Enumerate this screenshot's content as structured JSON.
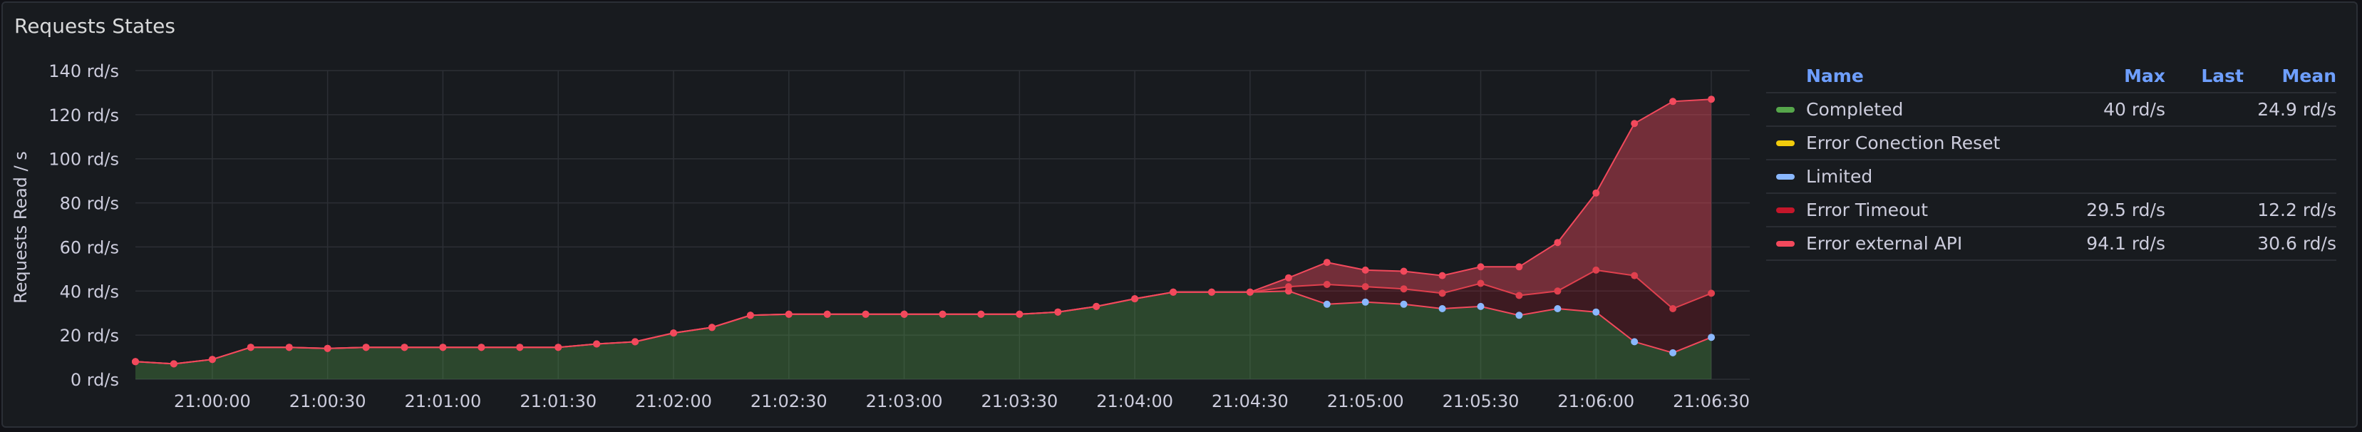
{
  "panel": {
    "title": "Requests States"
  },
  "legend": {
    "headers": {
      "name": "Name",
      "max": "Max",
      "last": "Last",
      "mean": "Mean"
    },
    "items": [
      {
        "name": "Completed",
        "color": "#56a64b",
        "max": "40 rd/s",
        "last": "",
        "mean": "24.9 rd/s"
      },
      {
        "name": "Error Conection Reset",
        "color": "#f2cc0c",
        "max": "",
        "last": "",
        "mean": ""
      },
      {
        "name": "Limited",
        "color": "#8ab8ff",
        "max": "",
        "last": "",
        "mean": ""
      },
      {
        "name": "Error Timeout",
        "color": "#c4162a",
        "max": "29.5 rd/s",
        "last": "",
        "mean": "12.2 rd/s"
      },
      {
        "name": "Error external API",
        "color": "#f2495c",
        "max": "94.1 rd/s",
        "last": "",
        "mean": "30.6 rd/s"
      }
    ]
  },
  "chart_data": {
    "type": "area",
    "stacked": true,
    "title": "Requests States",
    "ylabel": "Requests Read / s",
    "xlabel": "",
    "ylim": [
      0,
      140
    ],
    "y_ticks": [
      "0 rd/s",
      "20 rd/s",
      "40 rd/s",
      "60 rd/s",
      "80 rd/s",
      "100 rd/s",
      "120 rd/s",
      "140 rd/s"
    ],
    "x_ticks": [
      "21:00:00",
      "21:00:30",
      "21:01:00",
      "21:01:30",
      "21:02:00",
      "21:02:30",
      "21:03:00",
      "21:03:30",
      "21:04:00",
      "21:04:30",
      "21:05:00",
      "21:05:30",
      "21:06:00",
      "21:06:30"
    ],
    "x_start": "20:59:40",
    "x_end": "21:06:40",
    "x": [
      "20:59:40",
      "20:59:50",
      "21:00:00",
      "21:00:10",
      "21:00:20",
      "21:00:30",
      "21:00:40",
      "21:00:50",
      "21:01:00",
      "21:01:10",
      "21:01:20",
      "21:01:30",
      "21:01:40",
      "21:01:50",
      "21:02:00",
      "21:02:10",
      "21:02:20",
      "21:02:30",
      "21:02:40",
      "21:02:50",
      "21:03:00",
      "21:03:10",
      "21:03:20",
      "21:03:30",
      "21:03:40",
      "21:03:50",
      "21:04:00",
      "21:04:10",
      "21:04:20",
      "21:04:30",
      "21:04:40",
      "21:04:50",
      "21:05:00",
      "21:05:10",
      "21:05:20",
      "21:05:30",
      "21:05:40",
      "21:05:50",
      "21:06:00",
      "21:06:10",
      "21:06:20",
      "21:06:30"
    ],
    "grid": true,
    "legend_position": "right",
    "series": [
      {
        "name": "Completed",
        "color": "#56a64b",
        "values": [
          8,
          7,
          9,
          14.5,
          14.5,
          14,
          14.5,
          14.5,
          14.5,
          14.5,
          14.5,
          14.5,
          16,
          17,
          21,
          23.5,
          29,
          29.5,
          29.5,
          29.5,
          29.5,
          29.5,
          29.5,
          29.5,
          30.5,
          33,
          36.5,
          39.5,
          39.5,
          39.5,
          40,
          34,
          35,
          34,
          32,
          33,
          29,
          32,
          30.5,
          17,
          12,
          19
        ]
      },
      {
        "name": "Error Conection Reset",
        "color": "#f2cc0c",
        "values": [
          0,
          0,
          0,
          0,
          0,
          0,
          0,
          0,
          0,
          0,
          0,
          0,
          0,
          0,
          0,
          0,
          0,
          0,
          0,
          0,
          0,
          0,
          0,
          0,
          0,
          0,
          0,
          0,
          0,
          0,
          0,
          0,
          0,
          0,
          0,
          0,
          0,
          0,
          0,
          0,
          0,
          0
        ]
      },
      {
        "name": "Limited",
        "color": "#8ab8ff",
        "values": [
          0,
          0,
          0,
          0,
          0,
          0,
          0,
          0,
          0,
          0,
          0,
          0,
          0,
          0,
          0,
          0,
          0,
          0,
          0,
          0,
          0,
          0,
          0,
          0,
          0,
          0,
          0,
          0,
          0,
          0,
          0,
          0,
          0,
          0,
          0,
          0,
          0,
          0,
          0,
          0,
          0,
          0
        ]
      },
      {
        "name": "Error Timeout",
        "color": "#c4162a",
        "values": [
          0,
          0,
          0,
          0,
          0,
          0,
          0,
          0,
          0,
          0,
          0,
          0,
          0,
          0,
          0,
          0,
          0,
          0,
          0,
          0,
          0,
          0,
          0,
          0,
          0,
          0,
          0,
          0,
          0,
          0,
          2,
          9,
          7,
          7,
          7,
          10.5,
          9,
          8,
          19,
          30,
          20,
          20
        ]
      },
      {
        "name": "Error external API",
        "color": "#f2495c",
        "values": [
          0,
          0,
          0,
          0,
          0,
          0,
          0,
          0,
          0,
          0,
          0,
          0,
          0,
          0,
          0,
          0,
          0,
          0,
          0,
          0,
          0,
          0,
          0,
          0,
          0,
          0,
          0,
          0,
          0,
          0,
          4,
          10,
          7.5,
          8,
          8,
          7.5,
          13,
          22,
          35,
          69,
          94,
          88
        ]
      }
    ]
  }
}
